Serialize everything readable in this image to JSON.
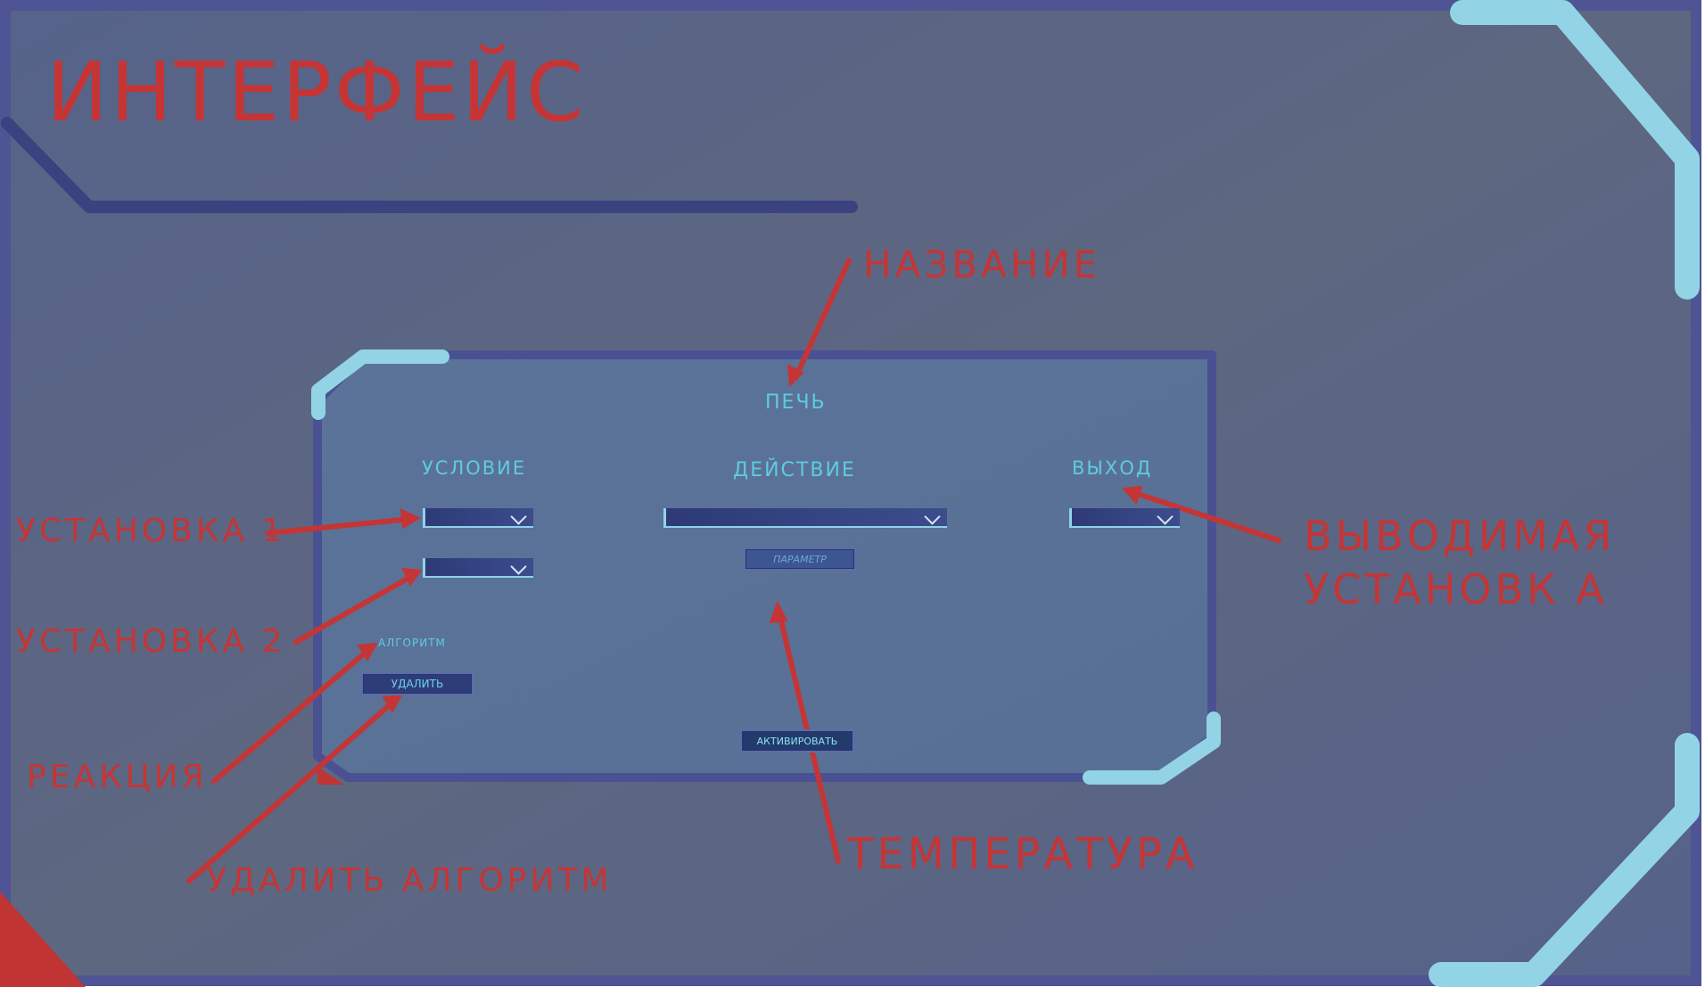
{
  "page": {
    "title": "ИНТЕРФЕЙС"
  },
  "panel": {
    "name": "ПЕЧЬ",
    "col_condition": "УСЛОВИЕ",
    "col_action": "ДЕЙСТВИЕ",
    "col_output": "ВЫХОД",
    "param_button": "ПАРАМЕТР",
    "algorithm_label": "АЛГОРИТМ",
    "delete_button": "УДАЛИТЬ",
    "activate_button": "АКТИВИРОВАТЬ"
  },
  "annotations": {
    "name": "НАЗВАНИЕ",
    "setting1": "УСТАНОВКА 1",
    "setting2": "УСТАНОВКА 2",
    "reaction": "РЕАКЦИЯ",
    "delete_algorithm": "УДАЛИТЬ АЛГОРИТМ",
    "temperature": "ТЕМПЕРАТУРА",
    "output_line1": "ВЫВОДИМАЯ",
    "output_line2": "УСТАНОВК А"
  },
  "colors": {
    "background": "#5c6a8a",
    "frame": "#4e5494",
    "accent": "#93d3e6",
    "annotation": "#c53535",
    "label": "#5ecbe2"
  },
  "icons": [
    "chevron-down-icon",
    "arrow-icon"
  ]
}
